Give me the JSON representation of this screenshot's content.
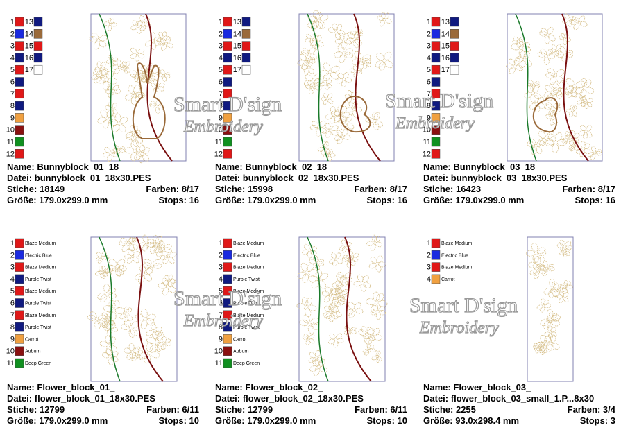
{
  "labels": {
    "name": "Name:",
    "file": "Datei:",
    "stitches": "Stiche:",
    "colors": "Farben:",
    "size": "Größe:",
    "stops": "Stops:"
  },
  "watermark": {
    "title": "Smart D'sign",
    "subtitle": "Embroidery"
  },
  "cards": [
    {
      "name": "Bunnyblock_01_18",
      "file": "bunnyblock_01_18x30.PES",
      "stitches": "18149",
      "colors": "8/17",
      "size": "179.0x299.0 mm",
      "stops": "16",
      "threads": [
        {
          "n": 1,
          "color": "#e01818"
        },
        {
          "n": 2,
          "color": "#1a2ae0"
        },
        {
          "n": 3,
          "color": "#e01818"
        },
        {
          "n": 4,
          "color": "#101a80"
        },
        {
          "n": 5,
          "color": "#e01818"
        },
        {
          "n": 6,
          "color": "#101a80"
        },
        {
          "n": 7,
          "color": "#e01818"
        },
        {
          "n": 8,
          "color": "#101a80"
        },
        {
          "n": 9,
          "color": "#f0a040"
        },
        {
          "n": 10,
          "color": "#8a1010"
        },
        {
          "n": 11,
          "color": "#109020"
        },
        {
          "n": 12,
          "color": "#e01818"
        },
        {
          "n": 13,
          "color": "#101a80"
        },
        {
          "n": 14,
          "color": "#9a6a3a"
        },
        {
          "n": 15,
          "color": "#e01818"
        },
        {
          "n": 16,
          "color": "#101a80"
        },
        {
          "n": 17,
          "color": "#ffffff"
        }
      ]
    },
    {
      "name": "Bunnyblock_02_18",
      "file": "bunnyblock_02_18x30.PES",
      "stitches": "15998",
      "colors": "8/17",
      "size": "179.0x299.0 mm",
      "stops": "16",
      "threads": [
        {
          "n": 1,
          "color": "#e01818"
        },
        {
          "n": 2,
          "color": "#1a2ae0"
        },
        {
          "n": 3,
          "color": "#e01818"
        },
        {
          "n": 4,
          "color": "#101a80"
        },
        {
          "n": 5,
          "color": "#e01818"
        },
        {
          "n": 6,
          "color": "#101a80"
        },
        {
          "n": 7,
          "color": "#e01818"
        },
        {
          "n": 8,
          "color": "#101a80"
        },
        {
          "n": 9,
          "color": "#f0a040"
        },
        {
          "n": 10,
          "color": "#8a1010"
        },
        {
          "n": 11,
          "color": "#109020"
        },
        {
          "n": 12,
          "color": "#e01818"
        },
        {
          "n": 13,
          "color": "#101a80"
        },
        {
          "n": 14,
          "color": "#9a6a3a"
        },
        {
          "n": 15,
          "color": "#e01818"
        },
        {
          "n": 16,
          "color": "#101a80"
        },
        {
          "n": 17,
          "color": "#ffffff"
        }
      ]
    },
    {
      "name": "Bunnyblock_03_18",
      "file": "bunnyblock_03_18x30.PES",
      "stitches": "16423",
      "colors": "8/17",
      "size": "179.0x299.0 mm",
      "stops": "16",
      "threads": [
        {
          "n": 1,
          "color": "#e01818"
        },
        {
          "n": 2,
          "color": "#1a2ae0"
        },
        {
          "n": 3,
          "color": "#e01818"
        },
        {
          "n": 4,
          "color": "#101a80"
        },
        {
          "n": 5,
          "color": "#e01818"
        },
        {
          "n": 6,
          "color": "#101a80"
        },
        {
          "n": 7,
          "color": "#e01818"
        },
        {
          "n": 8,
          "color": "#101a80"
        },
        {
          "n": 9,
          "color": "#f0a040"
        },
        {
          "n": 10,
          "color": "#8a1010"
        },
        {
          "n": 11,
          "color": "#109020"
        },
        {
          "n": 12,
          "color": "#e01818"
        },
        {
          "n": 13,
          "color": "#101a80"
        },
        {
          "n": 14,
          "color": "#9a6a3a"
        },
        {
          "n": 15,
          "color": "#e01818"
        },
        {
          "n": 16,
          "color": "#101a80"
        },
        {
          "n": 17,
          "color": "#ffffff"
        }
      ]
    },
    {
      "name": "Flower_block_01_",
      "file": "flower_block_01_18x30.PES",
      "stitches": "12799",
      "colors": "6/11",
      "size": "179.0x299.0 mm",
      "stops": "10",
      "threads": [
        {
          "n": 1,
          "color": "#e01818",
          "label": "Blaze Medium"
        },
        {
          "n": 2,
          "color": "#1a2ae0",
          "label": "Electric Blue"
        },
        {
          "n": 3,
          "color": "#e01818",
          "label": "Blaze Medium"
        },
        {
          "n": 4,
          "color": "#101a80",
          "label": "Purple Twist"
        },
        {
          "n": 5,
          "color": "#e01818",
          "label": "Blaze Medium"
        },
        {
          "n": 6,
          "color": "#101a80",
          "label": "Purple Twist"
        },
        {
          "n": 7,
          "color": "#e01818",
          "label": "Blaze Medium"
        },
        {
          "n": 8,
          "color": "#101a80",
          "label": "Purple Twist"
        },
        {
          "n": 9,
          "color": "#f0a040",
          "label": "Carrot"
        },
        {
          "n": 10,
          "color": "#8a1010",
          "label": "Auburn"
        },
        {
          "n": 11,
          "color": "#109020",
          "label": "Deep Green"
        }
      ]
    },
    {
      "name": "Flower_block_02_",
      "file": "flower_block_02_18x30.PES",
      "stitches": "12799",
      "colors": "6/11",
      "size": "179.0x299.0 mm",
      "stops": "10",
      "threads": [
        {
          "n": 1,
          "color": "#e01818",
          "label": "Blaze Medium"
        },
        {
          "n": 2,
          "color": "#1a2ae0",
          "label": "Electric Blue"
        },
        {
          "n": 3,
          "color": "#e01818",
          "label": "Blaze Medium"
        },
        {
          "n": 4,
          "color": "#101a80",
          "label": "Purple Twist"
        },
        {
          "n": 5,
          "color": "#e01818",
          "label": "Blaze Medium"
        },
        {
          "n": 6,
          "color": "#101a80",
          "label": "Purple Twist"
        },
        {
          "n": 7,
          "color": "#e01818",
          "label": "Blaze Medium"
        },
        {
          "n": 8,
          "color": "#101a80",
          "label": "Purple Twist"
        },
        {
          "n": 9,
          "color": "#f0a040",
          "label": "Carrot"
        },
        {
          "n": 10,
          "color": "#8a1010",
          "label": "Auburn"
        },
        {
          "n": 11,
          "color": "#109020",
          "label": "Deep Green"
        }
      ]
    },
    {
      "name": "Flower_block_03_",
      "file": "flower_block_03_small_1.P...8x30",
      "stitches": "2255",
      "colors": "3/4",
      "size": "93.0x298.4 mm",
      "stops": "3",
      "threads": [
        {
          "n": 1,
          "color": "#e01818",
          "label": "Blaze Medium"
        },
        {
          "n": 2,
          "color": "#1a2ae0",
          "label": "Electric Blue"
        },
        {
          "n": 3,
          "color": "#e01818",
          "label": "Blaze Medium"
        },
        {
          "n": 4,
          "color": "#f0a040",
          "label": "Carrot"
        }
      ]
    }
  ]
}
